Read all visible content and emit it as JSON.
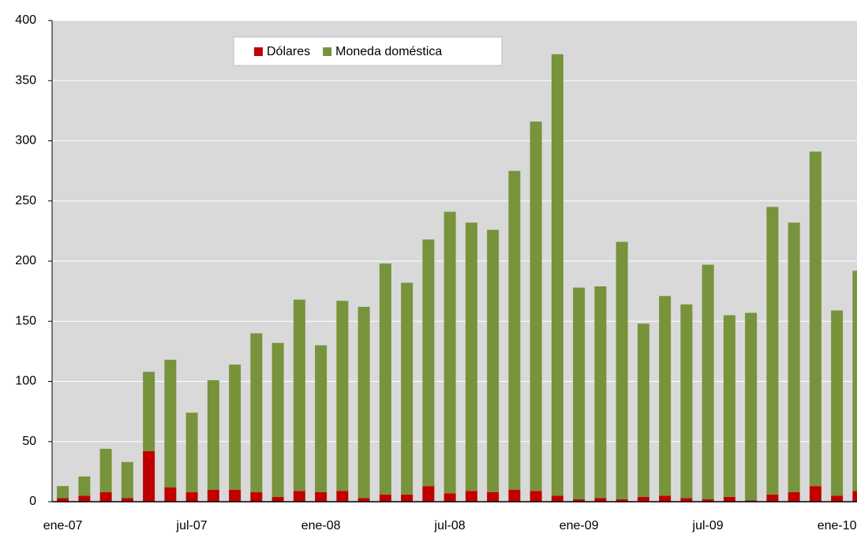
{
  "chart_data": {
    "type": "stacked-bar",
    "categories": [
      "ene-07",
      null,
      null,
      null,
      null,
      null,
      "jul-07",
      null,
      null,
      null,
      null,
      null,
      "ene-08",
      null,
      null,
      null,
      null,
      null,
      "jul-08",
      null,
      null,
      null,
      null,
      null,
      "ene-09",
      null,
      null,
      null,
      null,
      null,
      "jul-09",
      null,
      null,
      null,
      null,
      null,
      "ene-10",
      null
    ],
    "series": [
      {
        "name": "Dólares",
        "color": "#c00000",
        "values": [
          3,
          5,
          8,
          3,
          42,
          12,
          8,
          10,
          10,
          8,
          4,
          9,
          8,
          9,
          3,
          6,
          6,
          13,
          7,
          9,
          8,
          10,
          9,
          5,
          2,
          3,
          2,
          4,
          5,
          3,
          2,
          4,
          1,
          6,
          8,
          13,
          5,
          9
        ]
      },
      {
        "name": "Moneda doméstica",
        "color": "#77933c",
        "values": [
          10,
          16,
          36,
          30,
          66,
          106,
          66,
          91,
          104,
          132,
          128,
          159,
          122,
          158,
          159,
          192,
          176,
          205,
          234,
          223,
          218,
          265,
          307,
          367,
          176,
          176,
          214,
          144,
          166,
          161,
          195,
          151,
          156,
          239,
          224,
          278,
          154,
          183
        ]
      }
    ],
    "ylim": [
      0,
      400
    ],
    "yticks": [
      0,
      50,
      100,
      150,
      200,
      250,
      300,
      350,
      400
    ],
    "grid": true,
    "legend": "top"
  }
}
